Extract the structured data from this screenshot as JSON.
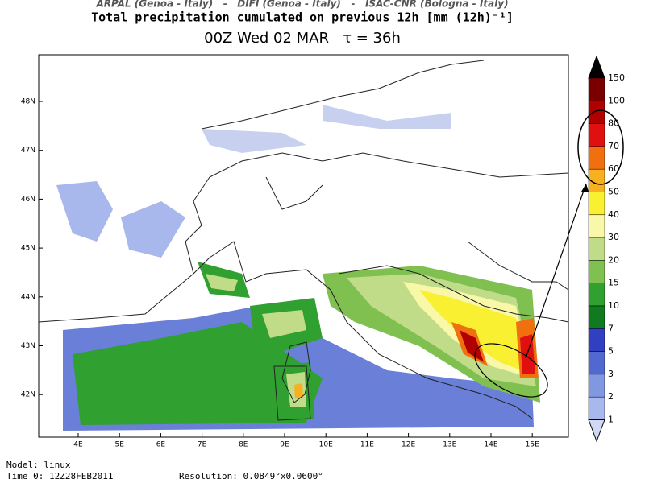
{
  "header": {
    "credits": "ARPAL (Genoa - Italy)   -   DIFI (Genoa - Italy)   -   ISAC-CNR (Bologna - Italy)",
    "title": "Total precipitation cumulated on previous 12h [mm (12h)⁻¹]",
    "subtitle": "00Z Wed 02 MAR   τ = 36h"
  },
  "map": {
    "lat_labels": [
      "48N",
      "47N",
      "46N",
      "45N",
      "44N",
      "43N",
      "42N"
    ],
    "lon_labels": [
      "4E",
      "5E",
      "6E",
      "7E",
      "8E",
      "9E",
      "10E",
      "11E",
      "12E",
      "13E",
      "14E",
      "15E"
    ]
  },
  "colorbar": {
    "levels": [
      "150",
      "100",
      "80",
      "70",
      "60",
      "50",
      "40",
      "30",
      "20",
      "15",
      "10",
      "7",
      "5",
      "3",
      "2",
      "1"
    ],
    "colors": [
      "#000000",
      "#7a0000",
      "#b00000",
      "#e01010",
      "#f07010",
      "#f8b020",
      "#f8f030",
      "#f8f8a8",
      "#c0dc88",
      "#80c050",
      "#30a030",
      "#107a20",
      "#3040c0",
      "#5068d0",
      "#8098e0",
      "#a8b8ec",
      "#d0d8f4"
    ]
  },
  "footer": {
    "model": "Model: linux",
    "time": "Time 0: 12Z28FEB2011",
    "resolution": "Resolution: 0.0849°x0.0600°"
  }
}
